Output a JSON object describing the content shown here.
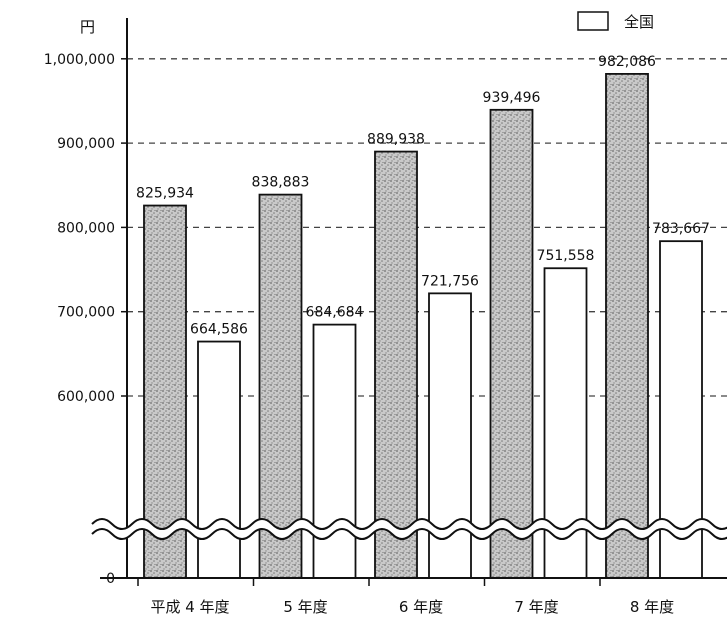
{
  "chart_data": {
    "type": "bar",
    "title": "",
    "unit_label": "円",
    "categories": [
      "平成 4 年度",
      "5 年度",
      "6 年度",
      "7 年度",
      "8 年度"
    ],
    "series": [
      {
        "name": "",
        "style": "stippled-gray",
        "values": [
          825934,
          838883,
          889938,
          939496,
          982086
        ],
        "labels": [
          "825,934",
          "838,883",
          "889,938",
          "939,496",
          "982,086"
        ]
      },
      {
        "name": "全国",
        "style": "white",
        "values": [
          664586,
          684684,
          721756,
          751558,
          783667
        ],
        "labels": [
          "664,586",
          "684,684",
          "721,756",
          "751,558",
          "783,667"
        ]
      }
    ],
    "yticks": [
      {
        "value": 0,
        "label": "0"
      },
      {
        "value": 600000,
        "label": "600,000"
      },
      {
        "value": 700000,
        "label": "700,000"
      },
      {
        "value": 800000,
        "label": "800,000"
      },
      {
        "value": 900000,
        "label": "900,000"
      },
      {
        "value": 1000000,
        "label": "1,000,000"
      }
    ],
    "ylim": [
      550000,
      1000000
    ],
    "axis_break": true,
    "grid": "dashed-horizontal",
    "legend_position": "top-right"
  },
  "colors": {
    "stipple_light": "#c9c9c9",
    "stipple_dark": "#6e6e6e",
    "bar_outline": "#111111",
    "grid": "#444444",
    "background": "#ffffff"
  }
}
